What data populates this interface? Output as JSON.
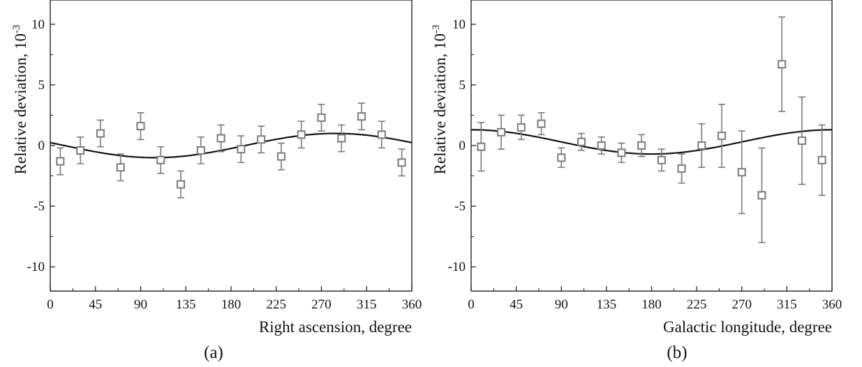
{
  "chart_data": [
    {
      "type": "scatter",
      "panel_label": "(a)",
      "xlabel": "Right ascension, degree",
      "ylabel": "Relative deviation, 10",
      "ylabel_exponent": "-3",
      "xlim": [
        0,
        360
      ],
      "ylim": [
        -12,
        12
      ],
      "xticks": [
        0,
        45,
        90,
        135,
        180,
        225,
        270,
        315,
        360
      ],
      "yticks": [
        -10,
        -5,
        0,
        5,
        10
      ],
      "ytick_labels": [
        "-10",
        "-5",
        "0",
        "5",
        "10"
      ],
      "grid": false,
      "series": [
        {
          "marker": "open-square",
          "color": "#7a7a7a",
          "x": [
            10,
            30,
            50,
            70,
            90,
            110,
            130,
            150,
            170,
            190,
            210,
            230,
            250,
            270,
            290,
            310,
            330,
            350
          ],
          "y": [
            -1.3,
            -0.4,
            1.0,
            -1.8,
            1.6,
            -1.2,
            -3.2,
            -0.4,
            0.6,
            -0.3,
            0.5,
            -0.9,
            0.9,
            2.3,
            0.6,
            2.4,
            0.9,
            -1.4
          ],
          "yerr": [
            1.1,
            1.1,
            1.1,
            1.1,
            1.1,
            1.1,
            1.1,
            1.1,
            1.1,
            1.1,
            1.1,
            1.1,
            1.1,
            1.1,
            1.1,
            1.1,
            1.1,
            1.1
          ]
        }
      ],
      "fit": {
        "amplitude": 1.0,
        "phase_deg": 284,
        "offset": 0,
        "color": "#111111"
      }
    },
    {
      "type": "scatter",
      "panel_label": "(b)",
      "xlabel": "Galactic longitude, degree",
      "ylabel": "Relative deviation, 10",
      "ylabel_exponent": "-3",
      "xlim": [
        0,
        360
      ],
      "ylim": [
        -12,
        12
      ],
      "xticks": [
        0,
        45,
        90,
        135,
        180,
        225,
        270,
        315,
        360
      ],
      "yticks": [
        -10,
        -5,
        0,
        5,
        10
      ],
      "ytick_labels": [
        "-10",
        "-5",
        "0",
        "5",
        "10"
      ],
      "grid": false,
      "series": [
        {
          "marker": "open-square",
          "color": "#7a7a7a",
          "x": [
            10,
            30,
            50,
            70,
            90,
            110,
            130,
            150,
            170,
            190,
            210,
            230,
            250,
            270,
            290,
            310,
            330,
            350
          ],
          "y": [
            -0.1,
            1.1,
            1.5,
            1.8,
            -1.0,
            0.3,
            0.0,
            -0.6,
            0.0,
            -1.2,
            -1.9,
            0.0,
            0.8,
            -2.2,
            -4.1,
            6.7,
            0.4,
            -1.2
          ],
          "yerr": [
            2.0,
            1.4,
            1.0,
            0.9,
            0.8,
            0.7,
            0.7,
            0.8,
            0.9,
            0.9,
            1.2,
            1.8,
            2.6,
            3.4,
            3.9,
            3.9,
            3.6,
            2.9
          ]
        }
      ],
      "fit": {
        "amplitude": 1.0,
        "phase_deg": 0,
        "offset": 0.3,
        "color": "#111111"
      }
    }
  ]
}
